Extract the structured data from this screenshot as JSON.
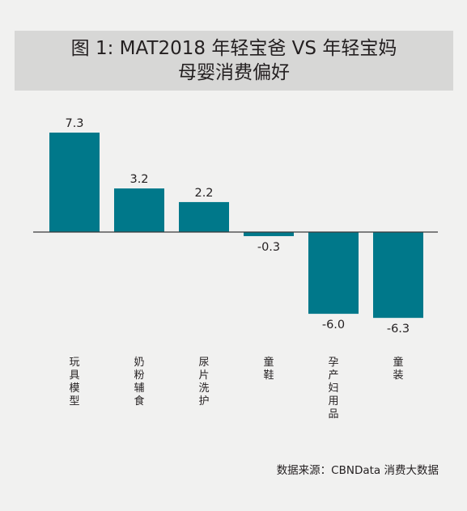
{
  "header": {
    "title_line1": "图 1: MAT2018 年轻宝爸 VS 年轻宝妈",
    "title_line2": "母婴消费偏好"
  },
  "footer": {
    "source": "数据来源：CBNData 消费大数据"
  },
  "colors": {
    "bar": "#00788a",
    "axis": "#3a3a3a",
    "background": "#f1f1f0",
    "title_box": "#d7d7d6"
  },
  "chart_data": {
    "type": "bar",
    "categories": [
      "玩具模型",
      "奶粉辅食",
      "尿片洗护",
      "童鞋",
      "孕产妇用品",
      "童装"
    ],
    "values": [
      7.3,
      3.2,
      2.2,
      -0.3,
      -6.0,
      -6.3
    ],
    "value_labels": [
      "7.3",
      "3.2",
      "2.2",
      "-0.3",
      "-6.0",
      "-6.3"
    ],
    "ylim": [
      -8,
      8
    ],
    "grid": false,
    "legend": "none"
  }
}
